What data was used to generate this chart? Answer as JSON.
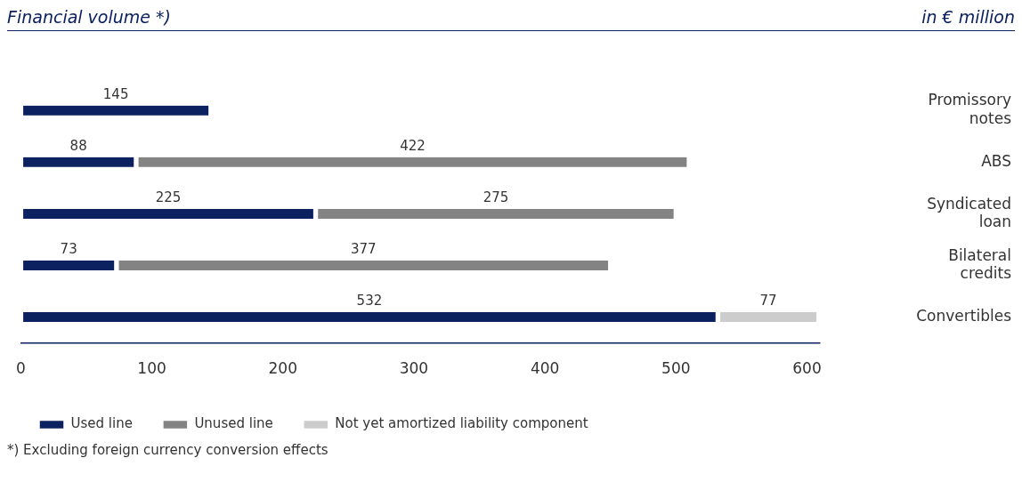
{
  "chart_data": {
    "type": "bar",
    "orientation": "horizontal",
    "stacked": true,
    "title": "Financial volume *)",
    "subtitle": "in € million",
    "categories": [
      "Promissory notes",
      "ABS",
      "Syndicated loan",
      "Bilateral credits",
      "Convertibles"
    ],
    "series": [
      {
        "name": "Used line",
        "color": "#0b2160",
        "values": [
          145,
          88,
          225,
          73,
          532
        ]
      },
      {
        "name": "Unused line",
        "color": "#838383",
        "values": [
          null,
          422,
          275,
          377,
          null
        ]
      },
      {
        "name": "Not yet amortized liability component",
        "color": "#cccccc",
        "values": [
          null,
          null,
          null,
          null,
          77
        ]
      }
    ],
    "xlim": [
      0,
      610
    ],
    "xticks": [
      0,
      100,
      200,
      300,
      400,
      500,
      600
    ],
    "grid": false,
    "legend": "bottom left",
    "data_labels": true,
    "annotations": [
      "*) Excluding foreign currency conversion effects"
    ]
  }
}
